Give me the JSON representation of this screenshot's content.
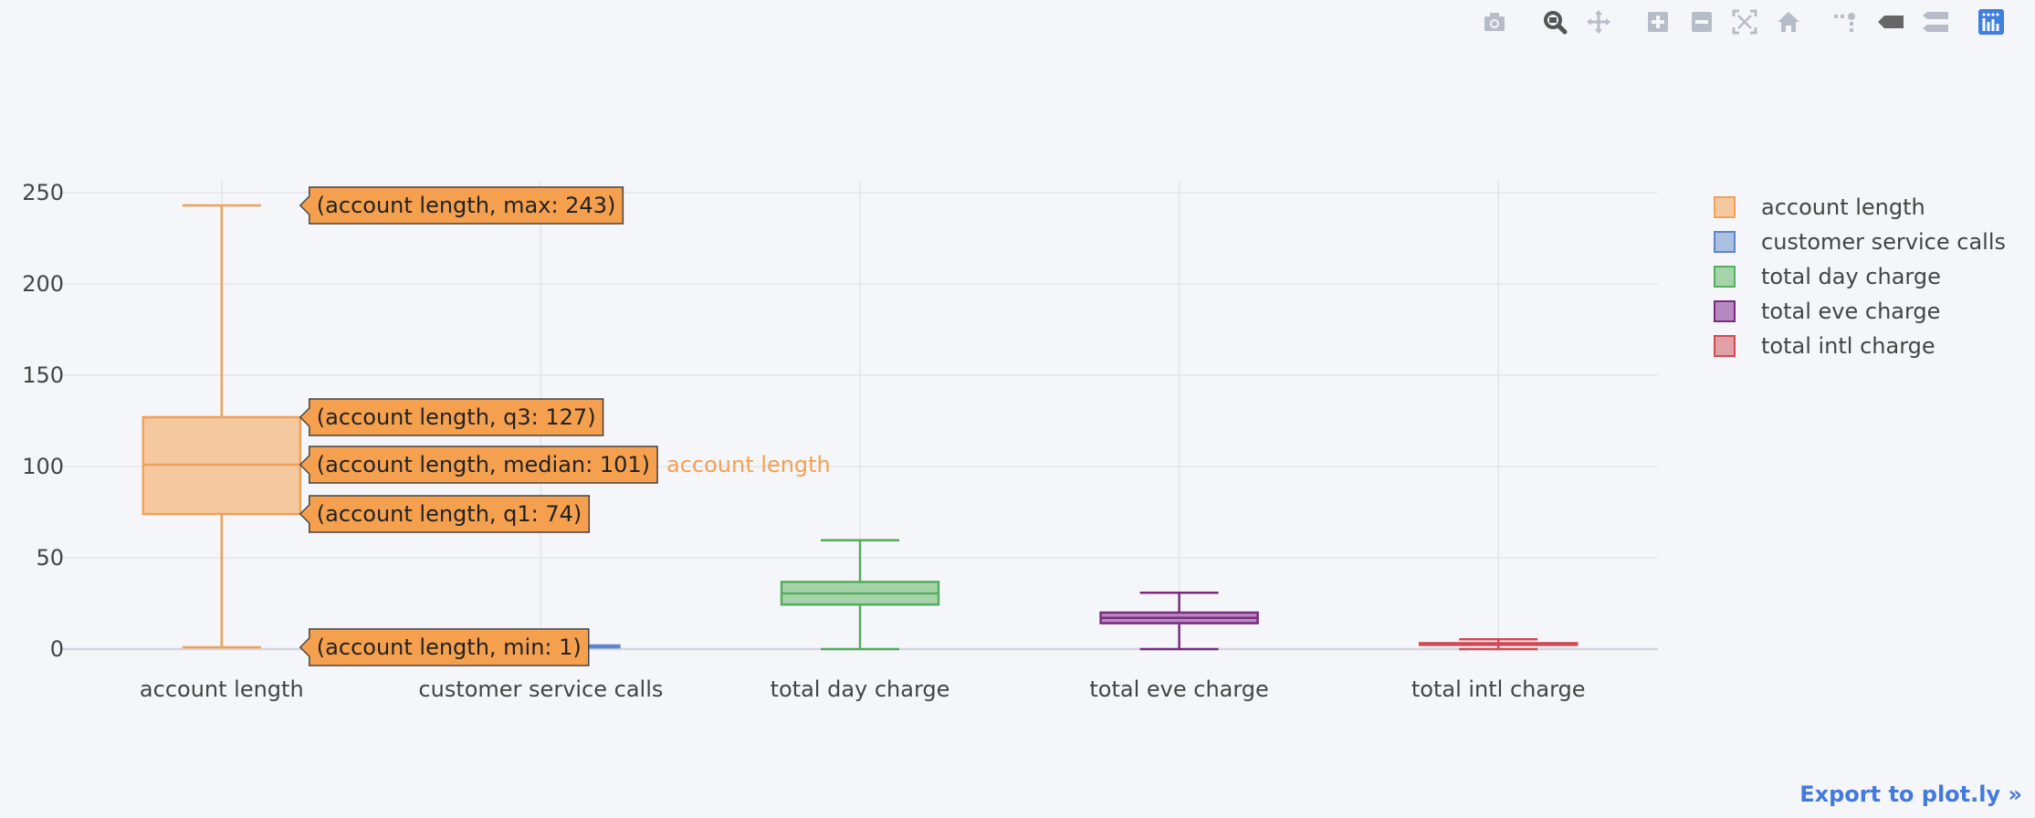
{
  "chart_data": {
    "type": "box",
    "categories": [
      "account length",
      "customer service calls",
      "total day charge",
      "total eve charge",
      "total intl charge"
    ],
    "series": [
      {
        "name": "account length",
        "min": 1,
        "q1": 74,
        "median": 101,
        "q3": 127,
        "max": 243,
        "fill": "#f5c9a0",
        "line": "#f0a058"
      },
      {
        "name": "customer service calls",
        "min": 0,
        "q1": 1,
        "median": 1,
        "q3": 2,
        "max": 9,
        "fill": "#a9c0e0",
        "line": "#5d86c8"
      },
      {
        "name": "total day charge",
        "min": 0,
        "q1": 24.4,
        "median": 30.5,
        "q3": 36.8,
        "max": 59.6,
        "fill": "#a6d4a9",
        "line": "#56ac5f"
      },
      {
        "name": "total eve charge",
        "min": 0,
        "q1": 14.2,
        "median": 17.1,
        "q3": 20.0,
        "max": 30.9,
        "fill": "#b68ac0",
        "line": "#7a2b80"
      },
      {
        "name": "total intl charge",
        "min": 0,
        "q1": 2.3,
        "median": 2.78,
        "q3": 3.27,
        "max": 5.4,
        "fill": "#e0a0a6",
        "line": "#d04a55"
      }
    ],
    "yticks": [
      0,
      50,
      100,
      150,
      200,
      250
    ],
    "ytick_labels": [
      "0",
      "50",
      "100",
      "150",
      "200",
      "250"
    ],
    "ylim": [
      0,
      255
    ],
    "grid": true,
    "legend": "top-right",
    "hover": {
      "series": "account length",
      "labels": [
        {
          "stat": "max",
          "text": "(account length, max: 243)"
        },
        {
          "stat": "q3",
          "text": "(account length, q3: 127)"
        },
        {
          "stat": "median",
          "text": "(account length, median: 101)"
        },
        {
          "stat": "q1",
          "text": "(account length, q1: 74)"
        },
        {
          "stat": "min",
          "text": "(account length, min: 1)"
        }
      ],
      "trace_label": "account length",
      "color": "#f5a04e"
    }
  },
  "modebar": {
    "buttons": [
      {
        "name": "camera-icon",
        "title": "Download plot as a png"
      },
      {
        "name": "zoom-icon",
        "title": "Zoom",
        "active": true
      },
      {
        "name": "pan-icon",
        "title": "Pan"
      },
      {
        "name": "zoom-in-icon",
        "title": "Zoom in"
      },
      {
        "name": "zoom-out-icon",
        "title": "Zoom out"
      },
      {
        "name": "autoscale-icon",
        "title": "Autoscale"
      },
      {
        "name": "home-icon",
        "title": "Reset axes"
      },
      {
        "name": "spike-lines-icon",
        "title": "Toggle Spike Lines"
      },
      {
        "name": "hover-closest-icon",
        "title": "Show closest data on hover"
      },
      {
        "name": "hover-compare-icon",
        "title": "Compare data on hover"
      },
      {
        "name": "plotly-logo-icon",
        "title": "Produced with Plotly"
      }
    ]
  },
  "export": {
    "label": "Export to plot.ly »"
  }
}
